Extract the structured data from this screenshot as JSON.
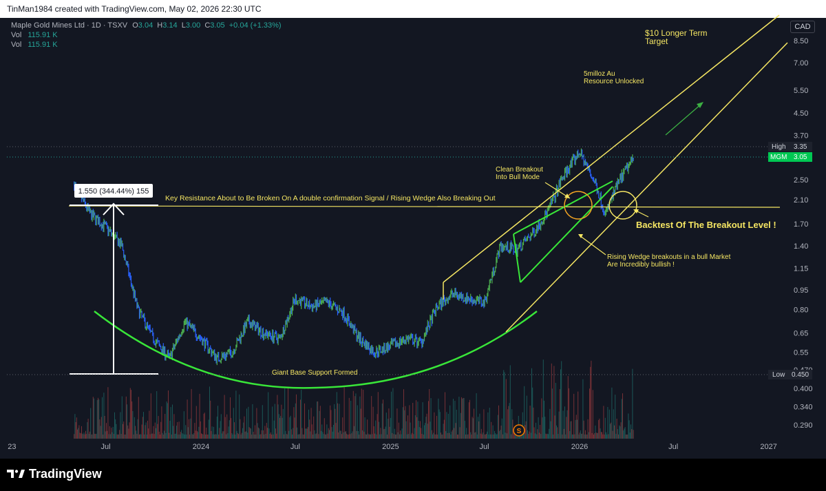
{
  "page": {
    "credit": "TinMan1984 created with TradingView.com, May 02, 2026 22:30 UTC",
    "brand": "TradingView"
  },
  "header": {
    "symbol": "Maple Gold Mines Ltd · 1D · TSXV",
    "o_label": "O",
    "o": "3.04",
    "h_label": "H",
    "h": "3.14",
    "l_label": "L",
    "l": "3.00",
    "c_label": "C",
    "c": "3.05",
    "change": "+0.04 (+1.33%)",
    "vol1_label": "Vol",
    "vol1": "115.91 K",
    "vol2_label": "Vol",
    "vol2": "115.91 K",
    "currency": "CAD"
  },
  "badges": {
    "high_label": "High",
    "high_value": "3.35",
    "ticker_label": "MGM",
    "ticker_value": "3.05",
    "low_label": "Low",
    "low_value": "0.450"
  },
  "annotations": {
    "measure": "1.550 (344.44%) 155",
    "key_resistance": "Key Resistance About to Be Broken On A double confirmation Signal / Rising Wedge Also Breaking Out",
    "target_line1": "$10 Longer Term",
    "target_line2": "Target",
    "resource_line1": "5milloz Au",
    "resource_line2": "Resource Unlocked",
    "clean_line1": "Clean Breakout",
    "clean_line2": "Into Bull Mode",
    "backtest": "Backtest Of The Breakout Level !",
    "wedge_line1": "Rising Wedge breakouts in a bull Market",
    "wedge_line2": "Are Incredibly bullish !",
    "base": "Giant Base Support Formed",
    "event_marker": "S"
  },
  "colors": {
    "background": "#131722",
    "up": "#26a69a",
    "down": "#ef5350",
    "price_up": "#4caf50",
    "price_down": "#2962ff",
    "annotation": "#f5e663",
    "base_curve": "#39e639",
    "grid": "#1e222d"
  },
  "chart_data": {
    "type": "candlestick",
    "symbol": "MGM",
    "exchange": "TSXV",
    "timeframe": "1D",
    "currency": "CAD",
    "scale": "log",
    "y_ticks": [
      "8.50",
      "7.00",
      "5.50",
      "4.50",
      "3.70",
      "2.50",
      "2.10",
      "1.70",
      "1.40",
      "1.15",
      "0.95",
      "0.80",
      "0.65",
      "0.55",
      "0.470",
      "0.400",
      "0.340",
      "0.290"
    ],
    "x_ticks": [
      "23",
      "Jul",
      "2024",
      "Jul",
      "2025",
      "Jul",
      "2026",
      "Jul",
      "2027"
    ],
    "grid": false,
    "price_path": [
      {
        "date": "2023-05-01",
        "close": 2.4
      },
      {
        "date": "2023-06-01",
        "close": 1.85
      },
      {
        "date": "2023-07-01",
        "close": 1.65
      },
      {
        "date": "2023-08-01",
        "close": 1.4
      },
      {
        "date": "2023-09-01",
        "close": 0.8
      },
      {
        "date": "2023-10-01",
        "close": 0.62
      },
      {
        "date": "2023-11-01",
        "close": 0.52
      },
      {
        "date": "2023-12-01",
        "close": 0.72
      },
      {
        "date": "2024-01-01",
        "close": 0.62
      },
      {
        "date": "2024-02-01",
        "close": 0.52
      },
      {
        "date": "2024-03-01",
        "close": 0.55
      },
      {
        "date": "2024-04-01",
        "close": 0.72
      },
      {
        "date": "2024-05-01",
        "close": 0.65
      },
      {
        "date": "2024-06-01",
        "close": 0.62
      },
      {
        "date": "2024-07-01",
        "close": 0.88
      },
      {
        "date": "2024-08-01",
        "close": 0.82
      },
      {
        "date": "2024-09-01",
        "close": 0.85
      },
      {
        "date": "2024-10-01",
        "close": 0.78
      },
      {
        "date": "2024-11-01",
        "close": 0.62
      },
      {
        "date": "2024-12-01",
        "close": 0.55
      },
      {
        "date": "2025-01-01",
        "close": 0.58
      },
      {
        "date": "2025-02-01",
        "close": 0.62
      },
      {
        "date": "2025-03-01",
        "close": 0.6
      },
      {
        "date": "2025-04-01",
        "close": 0.82
      },
      {
        "date": "2025-05-01",
        "close": 0.92
      },
      {
        "date": "2025-06-01",
        "close": 0.88
      },
      {
        "date": "2025-07-01",
        "close": 0.85
      },
      {
        "date": "2025-08-01",
        "close": 1.4
      },
      {
        "date": "2025-09-01",
        "close": 1.35
      },
      {
        "date": "2025-10-01",
        "close": 1.55
      },
      {
        "date": "2025-11-01",
        "close": 1.9
      },
      {
        "date": "2025-12-01",
        "close": 2.6
      },
      {
        "date": "2026-01-01",
        "close": 3.2
      },
      {
        "date": "2026-02-01",
        "close": 2.4
      },
      {
        "date": "2026-02-20",
        "close": 1.85
      },
      {
        "date": "2026-03-15",
        "close": 2.4
      },
      {
        "date": "2026-04-15",
        "close": 3.05
      }
    ],
    "last_close": 3.05,
    "high": 3.35,
    "low": 0.45,
    "key_resistance_level": 2.0,
    "measured_move": {
      "from": 0.45,
      "to": 2.0,
      "change": 1.55,
      "change_pct": 344.44,
      "bars": 155
    }
  }
}
